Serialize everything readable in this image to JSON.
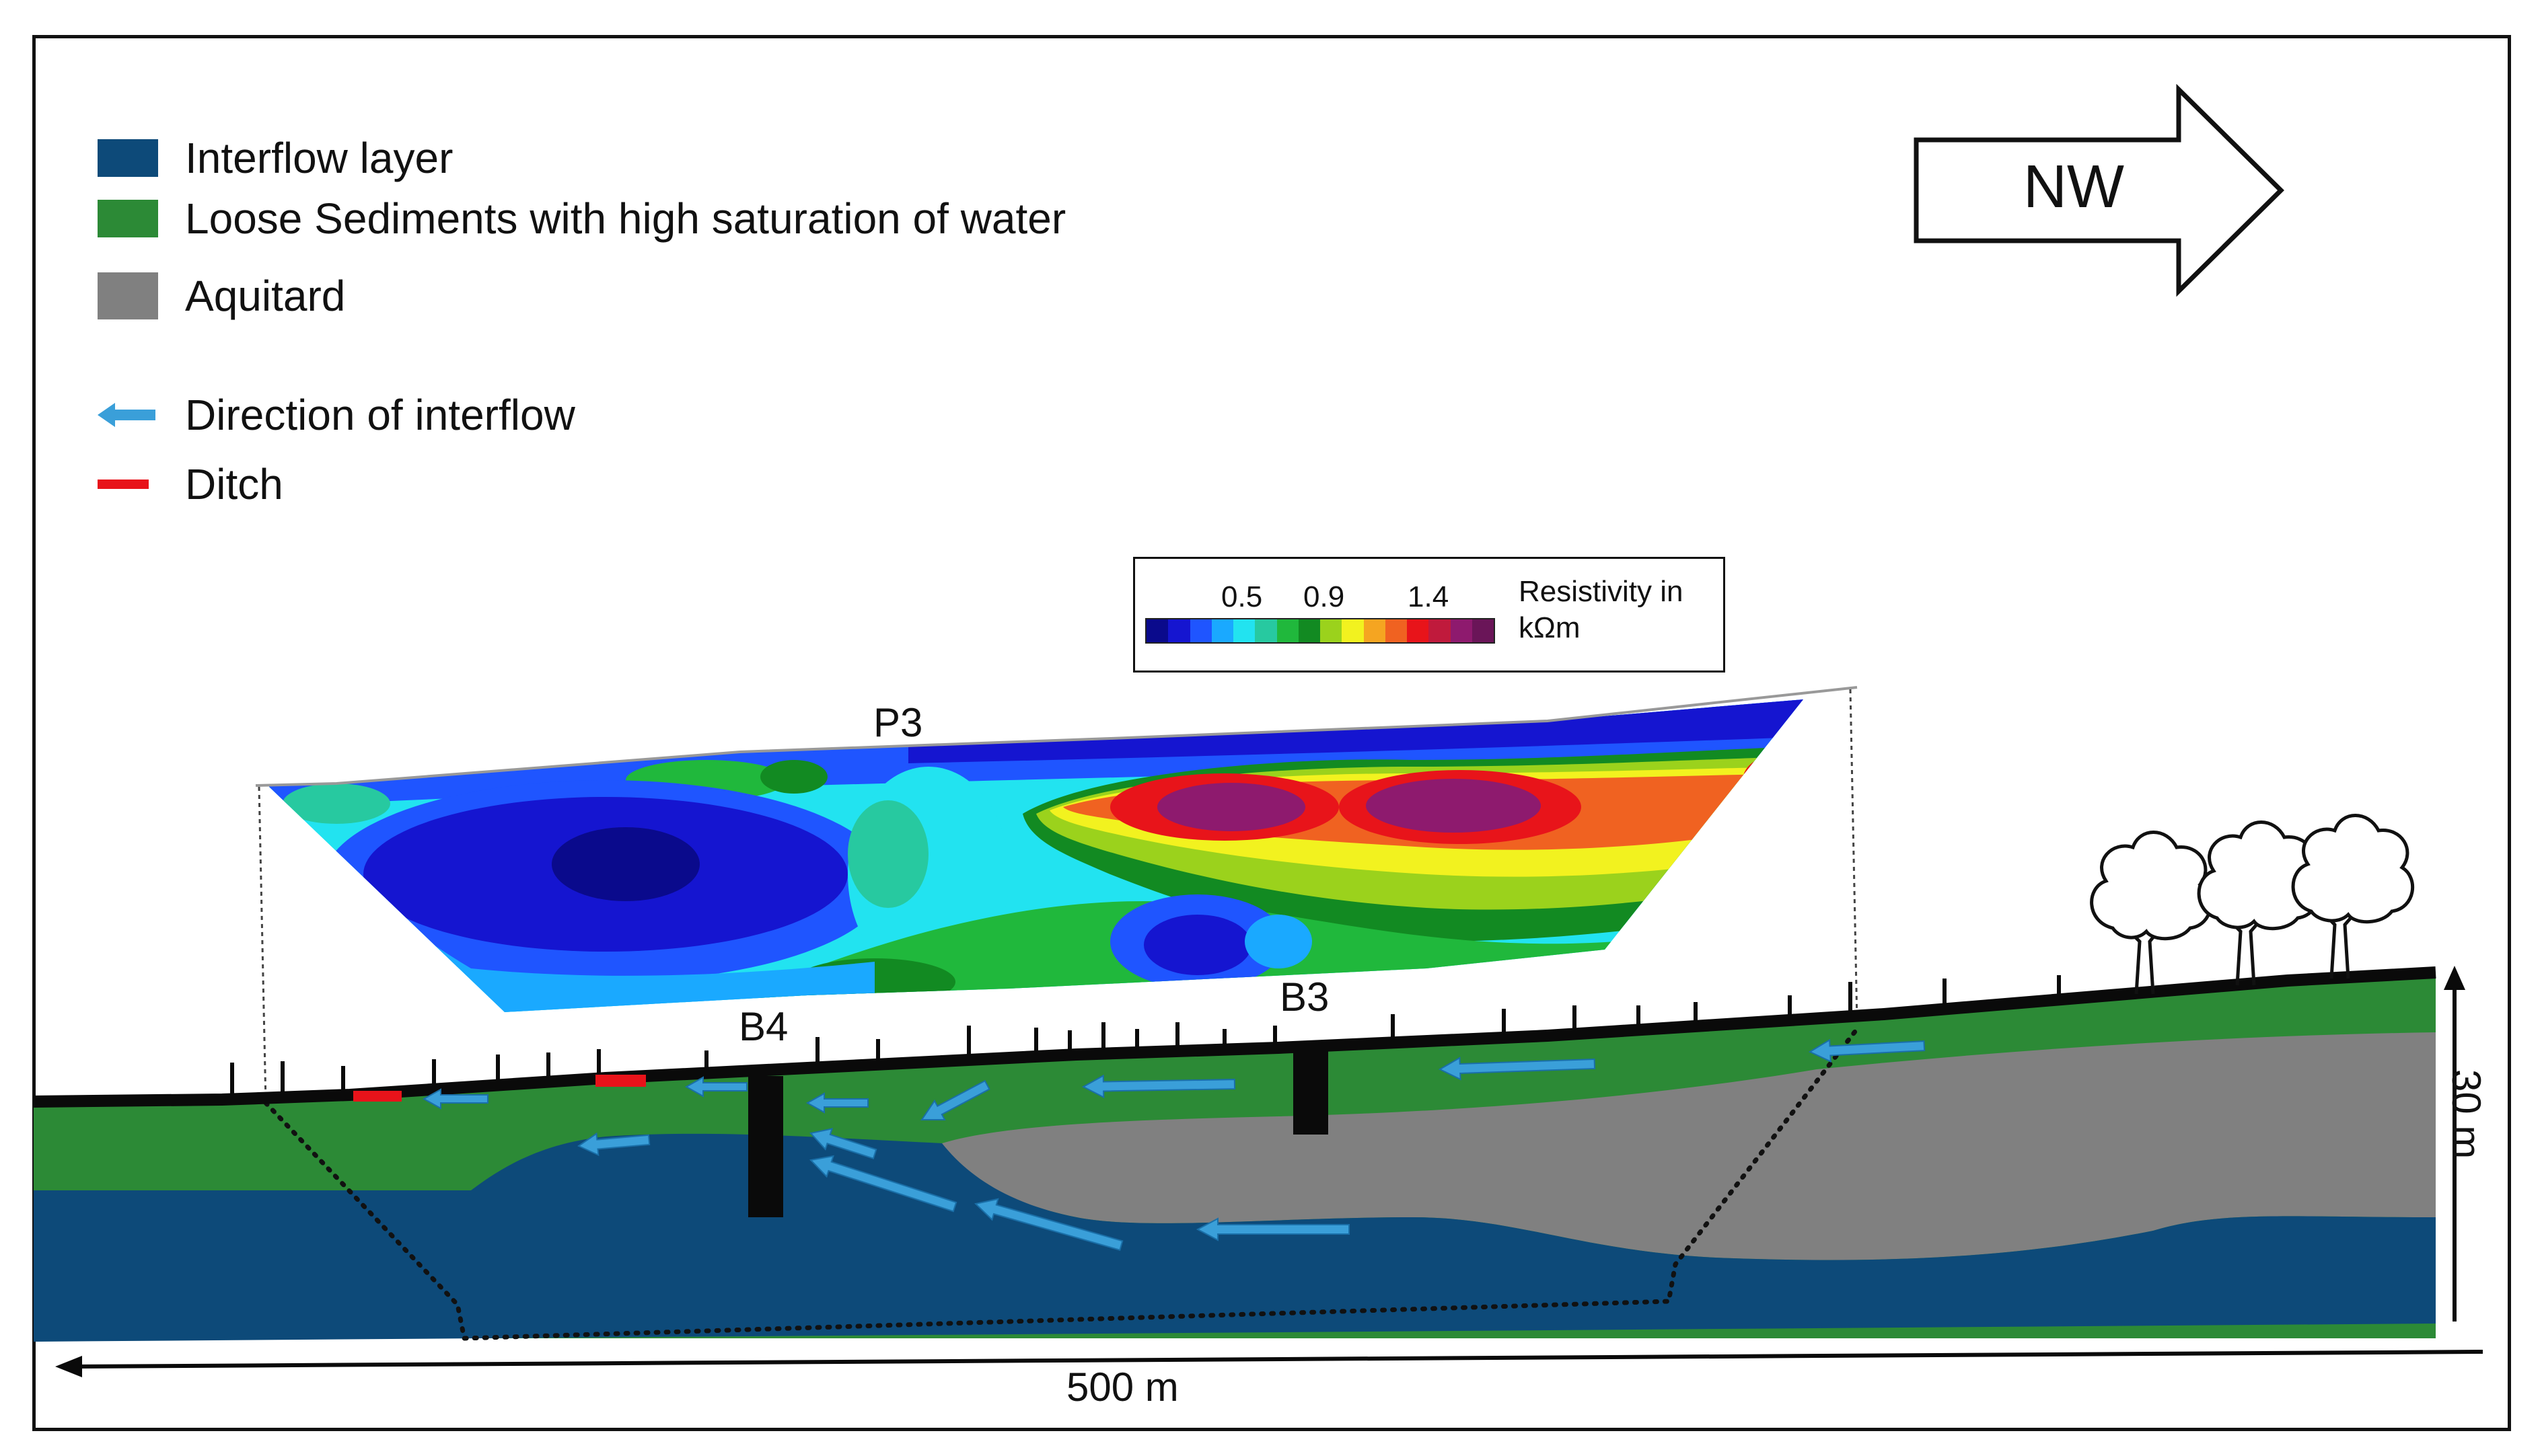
{
  "legend": {
    "items": [
      {
        "label": "Interflow layer",
        "color": "#0d4a79",
        "kind": "swatch"
      },
      {
        "label": "Loose Sediments with high saturation of water",
        "color": "#2c8a36",
        "kind": "swatch"
      },
      {
        "label": "Aquitard",
        "color": "#808080",
        "kind": "swatch"
      },
      {
        "label": "Direction of interflow",
        "color": "#3a9fd9",
        "kind": "arrow"
      },
      {
        "label": "Ditch",
        "color": "#e8131a",
        "kind": "dash"
      }
    ]
  },
  "compass": {
    "label": "NW"
  },
  "colorbar": {
    "title": "Resistivity in kΩm",
    "ticks": [
      "0.5",
      "0.9",
      "1.4"
    ],
    "colors": [
      "#0a0a8c",
      "#1515d0",
      "#1f55ff",
      "#1aa9ff",
      "#22e3f0",
      "#27c9a0",
      "#20b83c",
      "#128a22",
      "#9bd21c",
      "#f2f21f",
      "#f5a521",
      "#f06221",
      "#e8141a",
      "#c01a3c",
      "#8e1a6e",
      "#6a1558"
    ]
  },
  "profile": {
    "label": "P3"
  },
  "boreholes": [
    {
      "label": "B4"
    },
    {
      "label": "B3"
    }
  ],
  "scale": {
    "horizontal": "500 m",
    "vertical": "30 m"
  },
  "colors": {
    "interflow": "#0d4a79",
    "sediment": "#2c8a36",
    "aquitard": "#808080",
    "arrow": "#3a9fd9",
    "ditch": "#e8131a",
    "ground": "#0a0a0a"
  }
}
